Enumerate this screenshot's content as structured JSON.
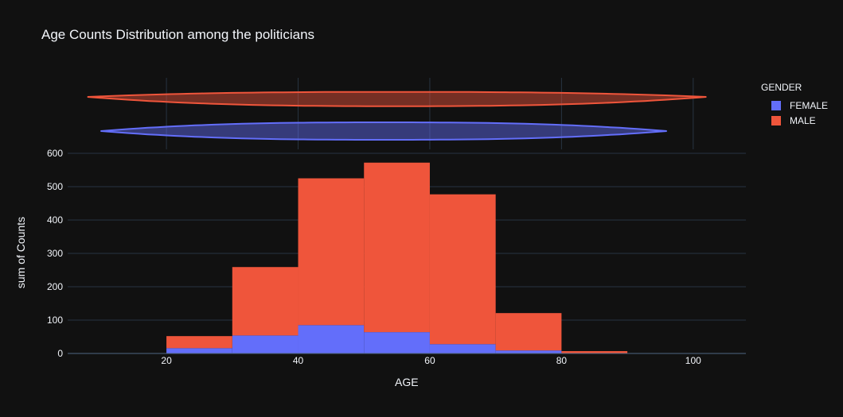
{
  "chart_data": {
    "type": "bar",
    "title": "Age Counts Distribution among the politicians",
    "xlabel": "AGE",
    "ylabel": "sum of Counts",
    "xlim": [
      5,
      108
    ],
    "ylim": [
      0,
      600
    ],
    "x_ticks": [
      20,
      40,
      60,
      80,
      100
    ],
    "y_ticks": [
      0,
      100,
      200,
      300,
      400,
      500,
      600
    ],
    "bin_edges": [
      20,
      30,
      40,
      50,
      60,
      70,
      80,
      90
    ],
    "barmode": "stack",
    "series": [
      {
        "name": "FEMALE",
        "color": "#636efa",
        "values": [
          16,
          54,
          85,
          64,
          28,
          9,
          0
        ]
      },
      {
        "name": "MALE",
        "color": "#ef553b",
        "values": [
          36,
          205,
          440,
          508,
          449,
          112,
          7
        ]
      }
    ],
    "marginal": {
      "type": "violin",
      "series": [
        {
          "name": "FEMALE",
          "color": "#636efa",
          "range": [
            10,
            96
          ]
        },
        {
          "name": "MALE",
          "color": "#ef553b",
          "range": [
            8,
            102
          ]
        }
      ]
    },
    "legend": {
      "title": "GENDER",
      "position": "top-right"
    },
    "grid": true
  }
}
